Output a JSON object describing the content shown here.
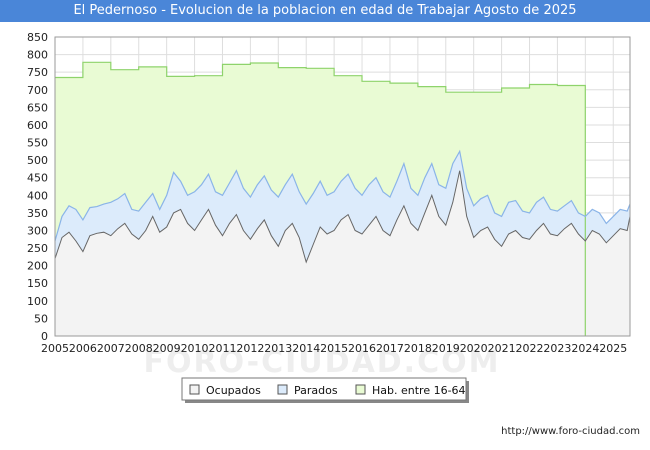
{
  "chart_data": {
    "type": "area",
    "title": "El Pedernoso - Evolucion de la poblacion en edad de Trabajar Agosto de 2025",
    "xlabel": "",
    "ylabel": "",
    "xlim": [
      2005,
      2025.6
    ],
    "ylim": [
      0,
      850
    ],
    "y_ticks": [
      0,
      50,
      100,
      150,
      200,
      250,
      300,
      350,
      400,
      450,
      500,
      550,
      600,
      650,
      700,
      750,
      800,
      850
    ],
    "x_ticks": [
      "2005",
      "2006",
      "2007",
      "2008",
      "2009",
      "2010",
      "2011",
      "2012",
      "2013",
      "2014",
      "2015",
      "2016",
      "2017",
      "2018",
      "2019",
      "2020",
      "2021",
      "2022",
      "2023",
      "2024",
      "2025"
    ],
    "grid": true,
    "legend_position": "bottom-center",
    "colors": {
      "ocupados_fill": "#f3f3f3",
      "ocupados_line": "#666666",
      "parados_fill": "#dcebfb",
      "parados_line": "#8ab4e8",
      "hab_fill": "#e9fbd4",
      "hab_line": "#8ed36b",
      "title_bg": "#4a86d8"
    },
    "series": [
      {
        "name": "Hab. entre 16-64",
        "type": "step",
        "x": [
          2005,
          2006,
          2007,
          2008,
          2009,
          2010,
          2011,
          2012,
          2013,
          2014,
          2015,
          2016,
          2017,
          2018,
          2019,
          2020,
          2021,
          2022,
          2023,
          2024
        ],
        "values": [
          735,
          778,
          757,
          765,
          738,
          740,
          772,
          776,
          763,
          761,
          740,
          724,
          719,
          709,
          693,
          693,
          705,
          715,
          712,
          0
        ]
      },
      {
        "name": "Parados",
        "x": [
          2005.0,
          2005.25,
          2005.5,
          2005.75,
          2006.0,
          2006.25,
          2006.5,
          2006.75,
          2007.0,
          2007.25,
          2007.5,
          2007.75,
          2008.0,
          2008.25,
          2008.5,
          2008.75,
          2009.0,
          2009.25,
          2009.5,
          2009.75,
          2010.0,
          2010.25,
          2010.5,
          2010.75,
          2011.0,
          2011.25,
          2011.5,
          2011.75,
          2012.0,
          2012.25,
          2012.5,
          2012.75,
          2013.0,
          2013.25,
          2013.5,
          2013.75,
          2014.0,
          2014.25,
          2014.5,
          2014.75,
          2015.0,
          2015.25,
          2015.5,
          2015.75,
          2016.0,
          2016.25,
          2016.5,
          2016.75,
          2017.0,
          2017.25,
          2017.5,
          2017.75,
          2018.0,
          2018.25,
          2018.5,
          2018.75,
          2019.0,
          2019.25,
          2019.5,
          2019.75,
          2020.0,
          2020.25,
          2020.5,
          2020.75,
          2021.0,
          2021.25,
          2021.5,
          2021.75,
          2022.0,
          2022.25,
          2022.5,
          2022.75,
          2023.0,
          2023.25,
          2023.5,
          2023.75,
          2024.0,
          2024.25,
          2024.5,
          2024.75,
          2025.0,
          2025.25,
          2025.5,
          2025.6
        ],
        "values": [
          270,
          340,
          370,
          360,
          330,
          365,
          368,
          375,
          380,
          390,
          405,
          360,
          355,
          380,
          405,
          360,
          400,
          465,
          440,
          400,
          410,
          430,
          460,
          410,
          400,
          435,
          470,
          420,
          395,
          430,
          455,
          415,
          395,
          430,
          460,
          410,
          375,
          405,
          440,
          400,
          410,
          440,
          460,
          420,
          400,
          430,
          450,
          410,
          395,
          440,
          490,
          420,
          400,
          450,
          490,
          430,
          420,
          490,
          525,
          420,
          370,
          390,
          400,
          350,
          340,
          380,
          385,
          355,
          350,
          380,
          395,
          360,
          355,
          370,
          385,
          350,
          340,
          360,
          350,
          320,
          340,
          360,
          355,
          375
        ]
      },
      {
        "name": "Ocupados",
        "x": [
          2005.0,
          2005.25,
          2005.5,
          2005.75,
          2006.0,
          2006.25,
          2006.5,
          2006.75,
          2007.0,
          2007.25,
          2007.5,
          2007.75,
          2008.0,
          2008.25,
          2008.5,
          2008.75,
          2009.0,
          2009.25,
          2009.5,
          2009.75,
          2010.0,
          2010.25,
          2010.5,
          2010.75,
          2011.0,
          2011.25,
          2011.5,
          2011.75,
          2012.0,
          2012.25,
          2012.5,
          2012.75,
          2013.0,
          2013.25,
          2013.5,
          2013.75,
          2014.0,
          2014.25,
          2014.5,
          2014.75,
          2015.0,
          2015.25,
          2015.5,
          2015.75,
          2016.0,
          2016.25,
          2016.5,
          2016.75,
          2017.0,
          2017.25,
          2017.5,
          2017.75,
          2018.0,
          2018.25,
          2018.5,
          2018.75,
          2019.0,
          2019.25,
          2019.5,
          2019.75,
          2020.0,
          2020.25,
          2020.5,
          2020.75,
          2021.0,
          2021.25,
          2021.5,
          2021.75,
          2022.0,
          2022.25,
          2022.5,
          2022.75,
          2023.0,
          2023.25,
          2023.5,
          2023.75,
          2024.0,
          2024.25,
          2024.5,
          2024.75,
          2025.0,
          2025.25,
          2025.5,
          2025.6
        ],
        "values": [
          220,
          280,
          295,
          270,
          240,
          285,
          292,
          295,
          285,
          305,
          320,
          290,
          275,
          300,
          340,
          295,
          310,
          350,
          360,
          320,
          300,
          330,
          360,
          315,
          285,
          320,
          345,
          300,
          275,
          305,
          330,
          285,
          255,
          300,
          320,
          280,
          210,
          260,
          310,
          290,
          300,
          330,
          345,
          300,
          290,
          315,
          340,
          300,
          285,
          330,
          370,
          320,
          300,
          350,
          400,
          340,
          315,
          380,
          470,
          340,
          280,
          300,
          310,
          275,
          255,
          290,
          300,
          280,
          275,
          300,
          320,
          290,
          285,
          305,
          320,
          290,
          270,
          300,
          290,
          265,
          285,
          305,
          300,
          340
        ]
      }
    ]
  },
  "legend": {
    "items": [
      {
        "label": "Ocupados",
        "color": "#f3f3f3"
      },
      {
        "label": "Parados",
        "color": "#dcebfb"
      },
      {
        "label": "Hab. entre 16-64",
        "color": "#e9fbd4"
      }
    ]
  },
  "watermark": "FORO-CIUDAD.COM",
  "credit": "http://www.foro-ciudad.com"
}
